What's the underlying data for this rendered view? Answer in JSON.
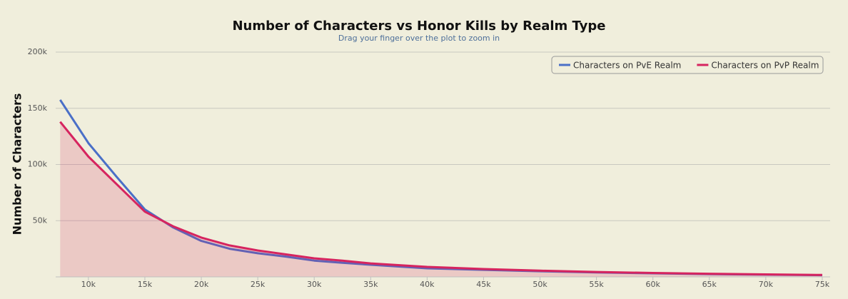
{
  "chart_data": {
    "type": "line",
    "title": "Number of Characters vs Honor Kills by Realm Type",
    "subtitle": "Drag your finger over the plot to zoom in",
    "y_label": "Number of Characters",
    "x": [
      7500,
      10000,
      12500,
      15000,
      17500,
      20000,
      22500,
      25000,
      27500,
      30000,
      32500,
      35000,
      40000,
      45000,
      50000,
      55000,
      60000,
      65000,
      70000,
      75000
    ],
    "series": [
      {
        "name": "Characters on PvE Realm",
        "color": "#4a6fc7",
        "values": [
          157500,
          119000,
          89000,
          60000,
          44000,
          32000,
          25000,
          21000,
          18000,
          14500,
          12500,
          10800,
          7600,
          6300,
          5000,
          4000,
          3200,
          2500,
          2000,
          1500
        ]
      },
      {
        "name": "Characters on PvP Realm",
        "color": "#d6245f",
        "values": [
          138000,
          107000,
          82500,
          58000,
          45000,
          35000,
          28000,
          23500,
          20000,
          16500,
          14500,
          12000,
          8900,
          7000,
          5500,
          4400,
          3500,
          2800,
          2200,
          1700
        ]
      }
    ],
    "xlim": [
      7100,
      75700
    ],
    "ylim": [
      0,
      200000
    ],
    "xticks": [
      {
        "value": 10000,
        "label": "10k"
      },
      {
        "value": 15000,
        "label": "15k"
      },
      {
        "value": 20000,
        "label": "20k"
      },
      {
        "value": 25000,
        "label": "25k"
      },
      {
        "value": 30000,
        "label": "30k"
      },
      {
        "value": 35000,
        "label": "35k"
      },
      {
        "value": 40000,
        "label": "40k"
      },
      {
        "value": 45000,
        "label": "45k"
      },
      {
        "value": 50000,
        "label": "50k"
      },
      {
        "value": 55000,
        "label": "55k"
      },
      {
        "value": 60000,
        "label": "60k"
      },
      {
        "value": 65000,
        "label": "65k"
      },
      {
        "value": 70000,
        "label": "70k"
      },
      {
        "value": 75000,
        "label": "75k"
      }
    ],
    "yticks": [
      {
        "value": 50000,
        "label": "50k"
      },
      {
        "value": 100000,
        "label": "100k"
      },
      {
        "value": 150000,
        "label": "150k"
      },
      {
        "value": 200000,
        "label": "200k"
      }
    ],
    "grid": true,
    "legend": "top-right"
  }
}
